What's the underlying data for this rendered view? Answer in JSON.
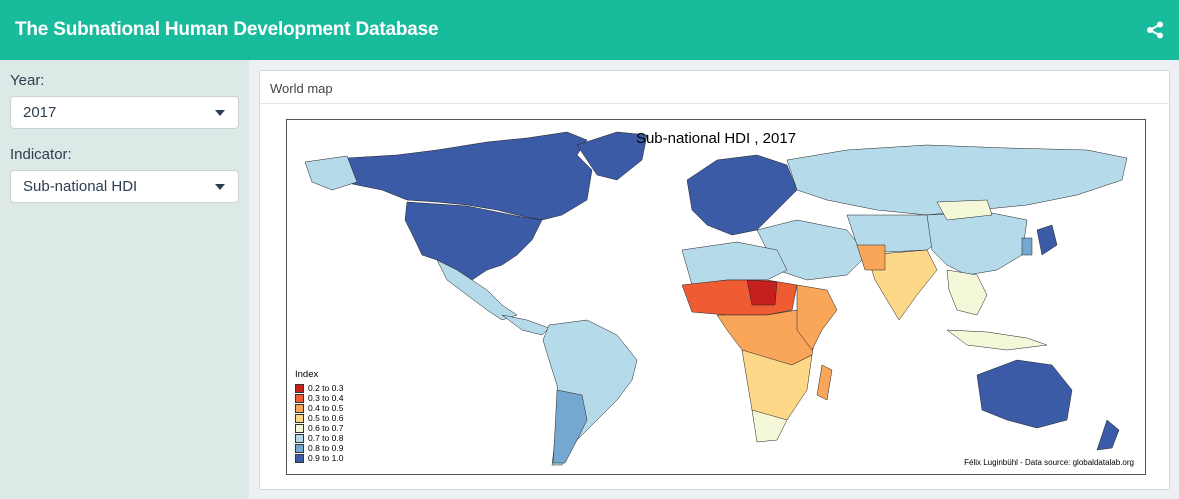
{
  "header": {
    "title": "The Subnational Human Development Database",
    "share_icon": "share-alt-icon"
  },
  "sidebar": {
    "year_label": "Year:",
    "year_value": "2017",
    "indicator_label": "Indicator:",
    "indicator_value": "Sub-national HDI"
  },
  "panel": {
    "title": "World map",
    "map_title": "Sub-national HDI , 2017",
    "legend_title": "Index",
    "legend": [
      {
        "label": "0.2 to 0.3",
        "color": "#c6201e"
      },
      {
        "label": "0.3 to 0.4",
        "color": "#ef5b33"
      },
      {
        "label": "0.4 to 0.5",
        "color": "#f9a55a"
      },
      {
        "label": "0.5 to 0.6",
        "color": "#fdd889"
      },
      {
        "label": "0.6 to 0.7",
        "color": "#f4f8d8"
      },
      {
        "label": "0.7 to 0.8",
        "color": "#b5daea"
      },
      {
        "label": "0.8 to 0.9",
        "color": "#74a8d1"
      },
      {
        "label": "0.9 to 1.0",
        "color": "#3c5ba7"
      }
    ],
    "credit": "Félix Luginbühl - Data source: globaldatalab.org"
  },
  "colors": {
    "header": "#18bc9c",
    "sidebar": "#dce9e6"
  }
}
